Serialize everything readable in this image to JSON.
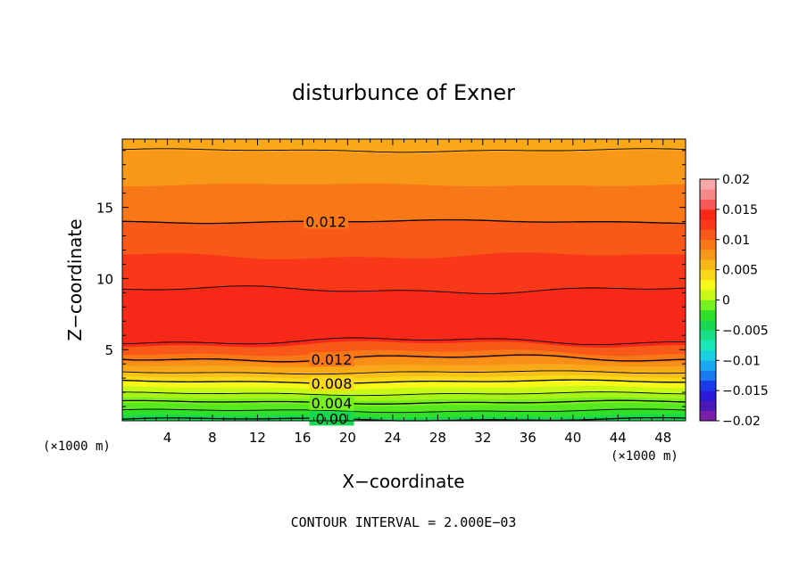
{
  "chart_data": {
    "type": "heatmap",
    "title": "disturbunce of Exner",
    "xlabel": "X−coordinate",
    "ylabel": "Z−coordinate",
    "x_unit_left": "(×1000 m)",
    "x_unit_right": "(×1000 m)",
    "xlim": [
      0,
      50
    ],
    "ylim": [
      0,
      19.8
    ],
    "x_ticks": [
      4,
      8,
      12,
      16,
      20,
      24,
      28,
      32,
      36,
      40,
      44,
      48
    ],
    "y_ticks": [
      5,
      10,
      15
    ],
    "footer": "CONTOUR INTERVAL = 2.000E−03",
    "colorbar": {
      "min": -0.02,
      "max": 0.02,
      "labels": [
        {
          "value": 0.02,
          "text": "0.02"
        },
        {
          "value": 0.015,
          "text": "0.015"
        },
        {
          "value": 0.01,
          "text": "0.01"
        },
        {
          "value": 0.005,
          "text": "0.005"
        },
        {
          "value": 0,
          "text": "0"
        },
        {
          "value": -0.005,
          "text": "−0.005"
        },
        {
          "value": -0.01,
          "text": "−0.01"
        },
        {
          "value": -0.015,
          "text": "−0.015"
        },
        {
          "value": -0.02,
          "text": "−0.02"
        }
      ],
      "colors": [
        "#7b1fa8",
        "#4a1ab8",
        "#2a1ad8",
        "#1a3ae8",
        "#1a78f0",
        "#1aa8f0",
        "#18d0e0",
        "#18e8b8",
        "#18e088",
        "#18d850",
        "#30e028",
        "#78f020",
        "#c8f818",
        "#f8f818",
        "#f8d818",
        "#f8b818",
        "#f89818",
        "#f87818",
        "#f85818",
        "#f83818",
        "#f82818",
        "#f85858",
        "#f88888",
        "#f8a8a8"
      ]
    },
    "bands": [
      {
        "z": [
          0.0,
          0.35
        ],
        "color": "#18d850"
      },
      {
        "z": [
          0.35,
          0.75
        ],
        "color": "#30e028"
      },
      {
        "z": [
          0.75,
          1.15
        ],
        "color": "#58e820"
      },
      {
        "z": [
          1.15,
          1.55
        ],
        "color": "#78f020"
      },
      {
        "z": [
          1.55,
          1.95
        ],
        "color": "#a8f418"
      },
      {
        "z": [
          1.95,
          2.35
        ],
        "color": "#c8f818"
      },
      {
        "z": [
          2.35,
          2.75
        ],
        "color": "#f8f818"
      },
      {
        "z": [
          2.75,
          3.1
        ],
        "color": "#f8d818"
      },
      {
        "z": [
          3.1,
          3.5
        ],
        "color": "#f8c018"
      },
      {
        "z": [
          3.5,
          3.9
        ],
        "color": "#f8a818"
      },
      {
        "z": [
          3.9,
          4.3
        ],
        "color": "#f89018"
      },
      {
        "z": [
          4.3,
          4.8
        ],
        "color": "#f87818"
      },
      {
        "z": [
          4.8,
          5.4
        ],
        "color": "#f85818"
      },
      {
        "z": [
          5.4,
          9.2
        ],
        "color": "#f82818"
      },
      {
        "z": [
          9.2,
          11.6
        ],
        "color": "#f83818"
      },
      {
        "z": [
          11.6,
          14.0
        ],
        "color": "#f85818"
      },
      {
        "z": [
          14.0,
          16.6
        ],
        "color": "#f87818"
      },
      {
        "z": [
          16.6,
          18.9
        ],
        "color": "#f89818"
      },
      {
        "z": [
          18.9,
          19.8
        ],
        "color": "#f8a818"
      }
    ],
    "contours": [
      {
        "z": 0.1,
        "label": "0.00",
        "label_x": 18.5
      },
      {
        "z": 1.3,
        "label": "0.004",
        "label_x": 18.5
      },
      {
        "z": 2.75,
        "label": "0.008",
        "label_x": 18.5
      },
      {
        "z": 4.4,
        "label": "0.012",
        "label_x": 18.5
      },
      {
        "z": 14.0,
        "label": "0.012",
        "label_x": 18.0
      }
    ],
    "extra_contours": [
      0.7,
      1.9,
      3.4,
      5.6,
      9.2,
      19.0
    ]
  }
}
